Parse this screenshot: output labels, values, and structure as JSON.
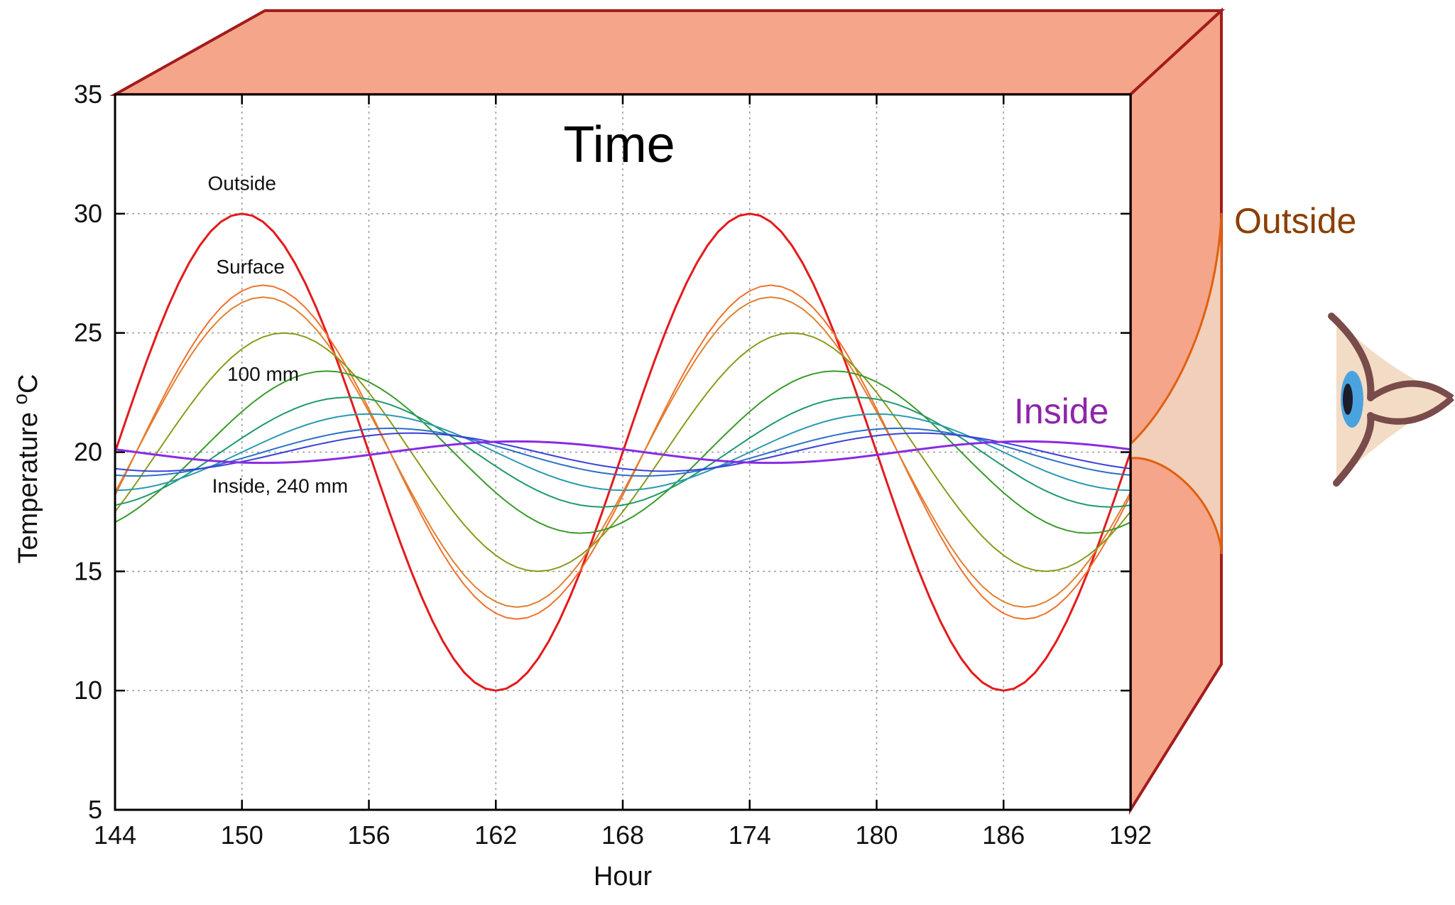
{
  "colors": {
    "wall_face": "#f4a58a",
    "wall_edge": "#a41b1b",
    "outside": "#8b3f00",
    "inside": "#8e24aa",
    "eye_skin": "#f3dcc5",
    "eye_iris": "#4aa3df",
    "eye_brow": "#7a4b4b"
  },
  "diagram": {
    "outside_label": "Outside",
    "inside_label": "Inside"
  },
  "chart_data": {
    "type": "line",
    "title": "Time",
    "xlabel": "Hour",
    "ylabel": "Temperature",
    "ylabel_superscript": "o",
    "ylabel_unit": "C",
    "xlim": [
      144,
      192
    ],
    "ylim": [
      5,
      35
    ],
    "xticks": [
      144,
      150,
      156,
      162,
      168,
      174,
      180,
      186,
      192
    ],
    "yticks": [
      5,
      10,
      15,
      20,
      25,
      30,
      35
    ],
    "grid": true,
    "annotations": [
      {
        "text": "Outside",
        "x": 150,
        "y": 31.0
      },
      {
        "text": "Surface",
        "x": 150.4,
        "y": 27.5
      },
      {
        "text": "100 mm",
        "x": 151,
        "y": 23.0
      },
      {
        "text": "Inside, 240 mm",
        "x": 151.8,
        "y": 18.3
      }
    ],
    "series": [
      {
        "color": "#e41a1c",
        "mean": 20,
        "amplitude": 10.0,
        "peak_hour": 150,
        "stroke": 3
      },
      {
        "color": "#f0702a",
        "mean": 20,
        "amplitude": 7.0,
        "peak_hour": 151,
        "stroke": 2
      },
      {
        "color": "#e08030",
        "mean": 20,
        "amplitude": 6.5,
        "peak_hour": 151,
        "stroke": 2
      },
      {
        "color": "#8a9a1a",
        "mean": 20,
        "amplitude": 5.0,
        "peak_hour": 152,
        "stroke": 2
      },
      {
        "color": "#3a9a2a",
        "mean": 20,
        "amplitude": 3.4,
        "peak_hour": 154,
        "stroke": 2
      },
      {
        "color": "#1f9a6a",
        "mean": 20,
        "amplitude": 2.3,
        "peak_hour": 155,
        "stroke": 2
      },
      {
        "color": "#2a9ab0",
        "mean": 20,
        "amplitude": 1.6,
        "peak_hour": 156,
        "stroke": 2
      },
      {
        "color": "#2a70c8",
        "mean": 20,
        "amplitude": 1.0,
        "peak_hour": 157,
        "stroke": 2
      },
      {
        "color": "#3a40d8",
        "mean": 20,
        "amplitude": 0.8,
        "peak_hour": 158,
        "stroke": 2
      },
      {
        "color": "#8a2be2",
        "mean": 20,
        "amplitude": 0.45,
        "peak_hour": 163,
        "stroke": 3
      }
    ]
  }
}
